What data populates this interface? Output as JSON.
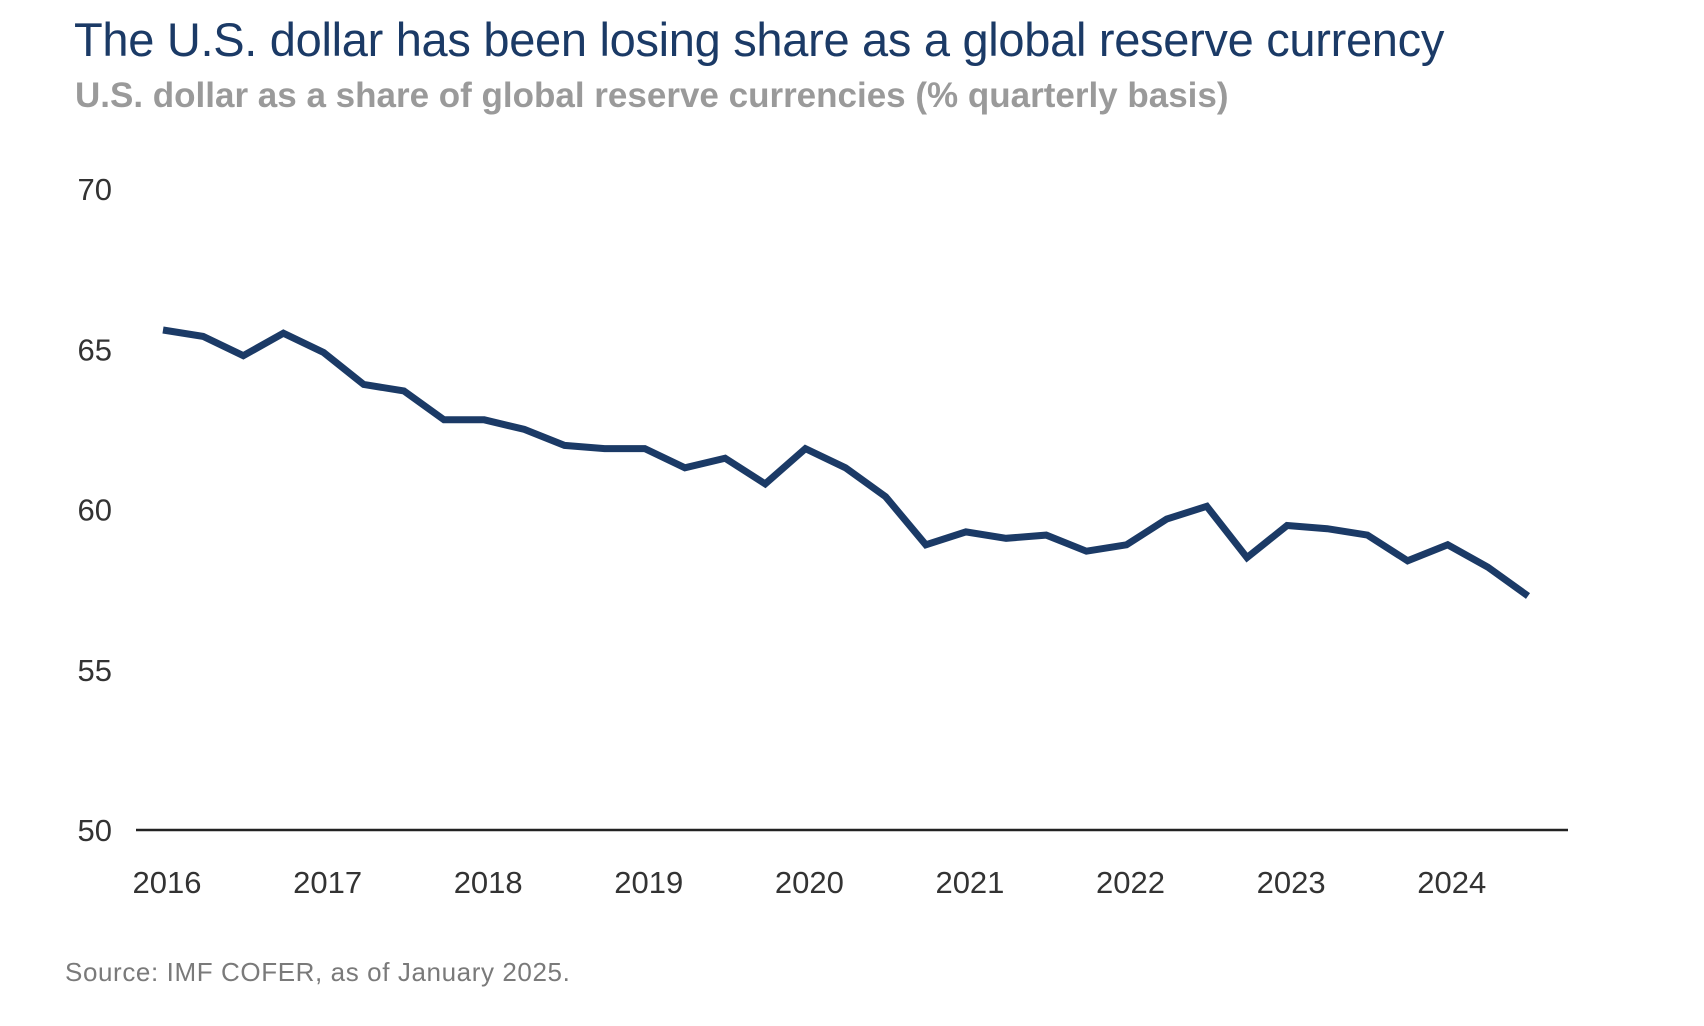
{
  "header": {
    "title": "The U.S. dollar has been losing share as a global reserve currency",
    "subtitle": "U.S. dollar as a share of global reserve currencies (% quarterly basis)"
  },
  "footer": {
    "source": "Source: IMF COFER, as of January 2025."
  },
  "colors": {
    "line": "#1b3a66",
    "axis": "#222222",
    "tick_text": "#333333"
  },
  "chart_data": {
    "type": "line",
    "title": "The U.S. dollar has been losing share as a global reserve currency",
    "subtitle": "U.S. dollar as a share of global reserve currencies (% quarterly basis)",
    "xlabel": "",
    "ylabel": "",
    "ylim": [
      50,
      70
    ],
    "yticks": [
      50,
      55,
      60,
      65,
      70
    ],
    "xticks": [
      "2016",
      "2017",
      "2018",
      "2019",
      "2020",
      "2021",
      "2022",
      "2023",
      "2024"
    ],
    "grid": false,
    "legend": "none",
    "x": [
      "2016 Q1",
      "2016 Q2",
      "2016 Q3",
      "2016 Q4",
      "2017 Q1",
      "2017 Q2",
      "2017 Q3",
      "2017 Q4",
      "2018 Q1",
      "2018 Q2",
      "2018 Q3",
      "2018 Q4",
      "2019 Q1",
      "2019 Q2",
      "2019 Q3",
      "2019 Q4",
      "2020 Q1",
      "2020 Q2",
      "2020 Q3",
      "2020 Q4",
      "2021 Q1",
      "2021 Q2",
      "2021 Q3",
      "2021 Q4",
      "2022 Q1",
      "2022 Q2",
      "2022 Q3",
      "2022 Q4",
      "2023 Q1",
      "2023 Q2",
      "2023 Q3",
      "2023 Q4",
      "2024 Q1",
      "2024 Q2",
      "2024 Q3"
    ],
    "values": [
      65.6,
      65.4,
      64.8,
      65.5,
      64.9,
      63.9,
      63.7,
      62.8,
      62.8,
      62.5,
      62.0,
      61.9,
      61.9,
      61.3,
      61.6,
      60.8,
      61.9,
      61.3,
      60.4,
      58.9,
      59.3,
      59.1,
      59.2,
      58.7,
      58.9,
      59.7,
      60.1,
      58.5,
      59.5,
      59.4,
      59.2,
      58.4,
      58.9,
      58.2,
      57.3
    ],
    "series": [
      {
        "values": [
          65.6,
          65.4,
          64.8,
          65.5,
          64.9,
          63.9,
          63.7,
          62.8,
          62.8,
          62.5,
          62.0,
          61.9,
          61.9,
          61.3,
          61.6,
          60.8,
          61.9,
          61.3,
          60.4,
          58.9,
          59.3,
          59.1,
          59.2,
          58.7,
          58.9,
          59.7,
          60.1,
          58.5,
          59.5,
          59.4,
          59.2,
          58.4,
          58.9,
          58.2,
          57.3
        ]
      }
    ]
  }
}
